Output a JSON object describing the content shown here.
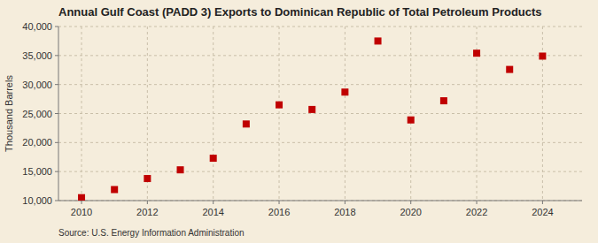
{
  "chart_data": {
    "type": "scatter",
    "title": "Annual Gulf Coast (PADD 3) Exports to Dominican Republic of Total Petroleum Products",
    "ylabel": "Thousand Barrels",
    "source": "Source: U.S. Energy Information Administration",
    "x": [
      2010,
      2011,
      2012,
      2013,
      2014,
      2015,
      2016,
      2017,
      2018,
      2019,
      2020,
      2021,
      2022,
      2023,
      2024
    ],
    "values": [
      10500,
      11900,
      13800,
      15300,
      17300,
      23200,
      26500,
      25700,
      28700,
      37500,
      23900,
      27200,
      35400,
      32600,
      34900
    ],
    "color": "#c00000",
    "marker": "square",
    "xlim": [
      2009.3,
      2025.2
    ],
    "xticks": [
      2010,
      2012,
      2014,
      2016,
      2018,
      2020,
      2022,
      2024
    ],
    "ylim": [
      10000,
      40000
    ],
    "yticks": [
      {
        "value": 10000,
        "label": "10,000"
      },
      {
        "value": 15000,
        "label": "15,000"
      },
      {
        "value": 20000,
        "label": "20,000"
      },
      {
        "value": 25000,
        "label": "25,000"
      },
      {
        "value": 30000,
        "label": "30,000"
      },
      {
        "value": 35000,
        "label": "35,000"
      },
      {
        "value": 40000,
        "label": "40,000"
      }
    ],
    "grid": true
  }
}
